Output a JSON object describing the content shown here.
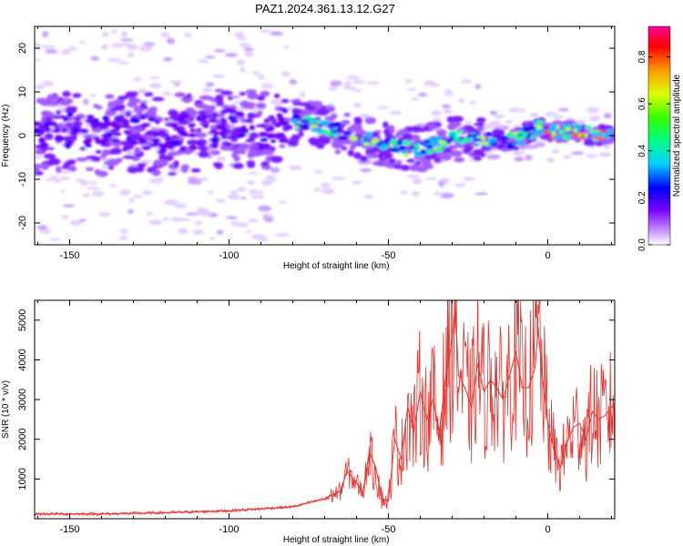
{
  "title": "PAZ1.2024.361.13.12.G27",
  "chart_data": [
    {
      "type": "heatmap",
      "title": "PAZ1.2024.361.13.12.G27",
      "xlabel": "Height of straight line (km)",
      "ylabel": "Frequency (Hz)",
      "xlim": [
        -161,
        21
      ],
      "ylim": [
        -25,
        25
      ],
      "xticks": [
        -150,
        -100,
        -50,
        0
      ],
      "yticks": [
        -20,
        -10,
        0,
        10,
        20
      ],
      "colorbar": {
        "label": "Normalized spectral amplitude",
        "range": [
          0,
          0.93
        ],
        "ticks": [
          "0.0",
          "0.2",
          "0.4",
          "0.6",
          "0.8"
        ]
      },
      "ridge": {
        "x": [
          -161,
          -150,
          -140,
          -130,
          -120,
          -110,
          -100,
          -90,
          -80,
          -75,
          -70,
          -65,
          -60,
          -55,
          -50,
          -45,
          -40,
          -35,
          -30,
          -25,
          -20,
          -15,
          -10,
          -5,
          -2,
          0,
          5,
          10,
          15,
          21
        ],
        "frequency": [
          0,
          1,
          0,
          1,
          0,
          1,
          2,
          1,
          3,
          3,
          2,
          1,
          0,
          -1,
          -2,
          -3,
          -3,
          -2,
          -1,
          0,
          -1,
          -1,
          -1,
          1,
          2,
          1,
          1,
          1,
          0,
          0
        ]
      },
      "grid": false
    },
    {
      "type": "line",
      "xlabel": "Height of straight line (km)",
      "ylabel": "SNR (10 * v/v)",
      "xlim": [
        -161,
        21
      ],
      "ylim": [
        0,
        5500
      ],
      "xticks": [
        -150,
        -100,
        -50,
        0
      ],
      "yticks": [
        1000,
        2000,
        3000,
        4000,
        5000
      ],
      "series": [
        {
          "color": "#e8322e",
          "x": [
            -161,
            -140,
            -120,
            -100,
            -90,
            -80,
            -75,
            -70,
            -65,
            -63,
            -60,
            -58,
            -56,
            -54,
            -52,
            -50,
            -48,
            -46,
            -44,
            -42,
            -40,
            -38,
            -36,
            -34,
            -32,
            -30,
            -29,
            -28,
            -26,
            -24,
            -22,
            -20,
            -18,
            -16,
            -14,
            -12,
            -10,
            -8,
            -6,
            -4,
            -3,
            -2,
            0,
            2,
            4,
            6,
            8,
            10,
            12,
            14,
            16,
            18,
            21
          ],
          "y": [
            120,
            120,
            150,
            200,
            250,
            300,
            400,
            500,
            700,
            1200,
            900,
            650,
            1700,
            1300,
            500,
            450,
            2000,
            1500,
            2800,
            2200,
            3200,
            2500,
            3000,
            2200,
            3600,
            4500,
            5400,
            3600,
            3300,
            2800,
            3900,
            3200,
            3500,
            3300,
            3000,
            3600,
            4200,
            3300,
            3300,
            3800,
            4800,
            3800,
            2400,
            1700,
            1300,
            1900,
            2300,
            2400,
            2000,
            2700,
            2500,
            2600,
            2900
          ]
        }
      ],
      "grid": false
    }
  ]
}
